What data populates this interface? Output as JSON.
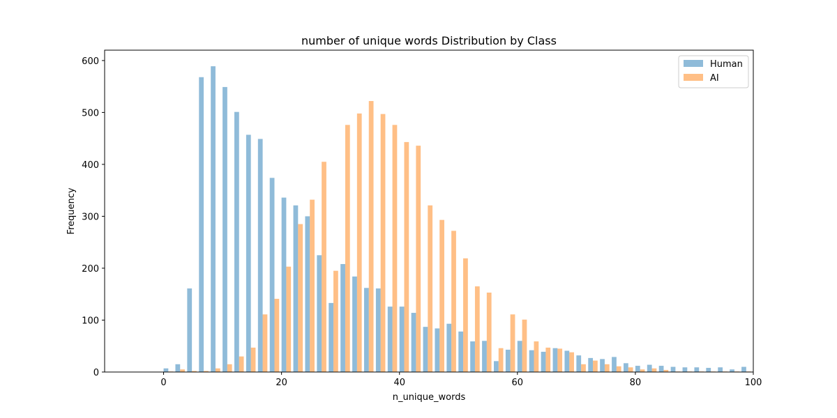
{
  "chart_data": {
    "type": "bar",
    "title": "number of unique words Distribution by Class",
    "xlabel": "n_unique_words",
    "ylabel": "Frequency",
    "xlim": [
      -10,
      100
    ],
    "ylim": [
      0,
      620
    ],
    "xticks": [
      0,
      20,
      40,
      60,
      80,
      100
    ],
    "yticks": [
      0,
      100,
      200,
      300,
      400,
      500,
      600
    ],
    "grid": false,
    "legend": "top-right",
    "bin_width": 2,
    "series": [
      {
        "name": "Human",
        "color": "#1f77b4",
        "opacity": 0.5,
        "x": [
          0,
          2,
          4,
          6,
          8,
          10,
          12,
          14,
          16,
          18,
          20,
          22,
          24,
          26,
          28,
          30,
          32,
          34,
          36,
          38,
          40,
          42,
          44,
          46,
          48,
          50,
          52,
          54,
          56,
          58,
          60,
          62,
          64,
          66,
          68,
          70,
          72,
          74,
          76,
          78,
          80,
          82,
          84,
          86,
          88,
          90,
          92,
          94,
          96,
          98
        ],
        "values": [
          7,
          15,
          161,
          568,
          589,
          549,
          501,
          457,
          449,
          374,
          336,
          321,
          300,
          225,
          133,
          208,
          184,
          162,
          161,
          126,
          126,
          114,
          87,
          84,
          93,
          78,
          59,
          60,
          21,
          43,
          60,
          42,
          39,
          46,
          41,
          32,
          27,
          25,
          29,
          17,
          12,
          14,
          12,
          10,
          9,
          9,
          8,
          9,
          5,
          10
        ]
      },
      {
        "name": "AI",
        "color": "#ff7f0e",
        "opacity": 0.5,
        "x": [
          0,
          2,
          4,
          6,
          8,
          10,
          12,
          14,
          16,
          18,
          20,
          22,
          24,
          26,
          28,
          30,
          32,
          34,
          36,
          38,
          40,
          42,
          44,
          46,
          48,
          50,
          52,
          54,
          56,
          58,
          60,
          62,
          64,
          66,
          68,
          70,
          72,
          74,
          76,
          78,
          80,
          82,
          84,
          86,
          88,
          90,
          92,
          94,
          96,
          98
        ],
        "values": [
          1,
          5,
          2,
          2,
          7,
          15,
          30,
          47,
          111,
          141,
          203,
          285,
          332,
          405,
          195,
          476,
          498,
          522,
          497,
          476,
          443,
          436,
          321,
          293,
          272,
          219,
          165,
          153,
          46,
          111,
          101,
          59,
          47,
          45,
          38,
          15,
          22,
          15,
          11,
          9,
          5,
          7,
          4,
          1,
          1,
          1,
          1,
          1,
          1,
          1
        ]
      }
    ]
  }
}
